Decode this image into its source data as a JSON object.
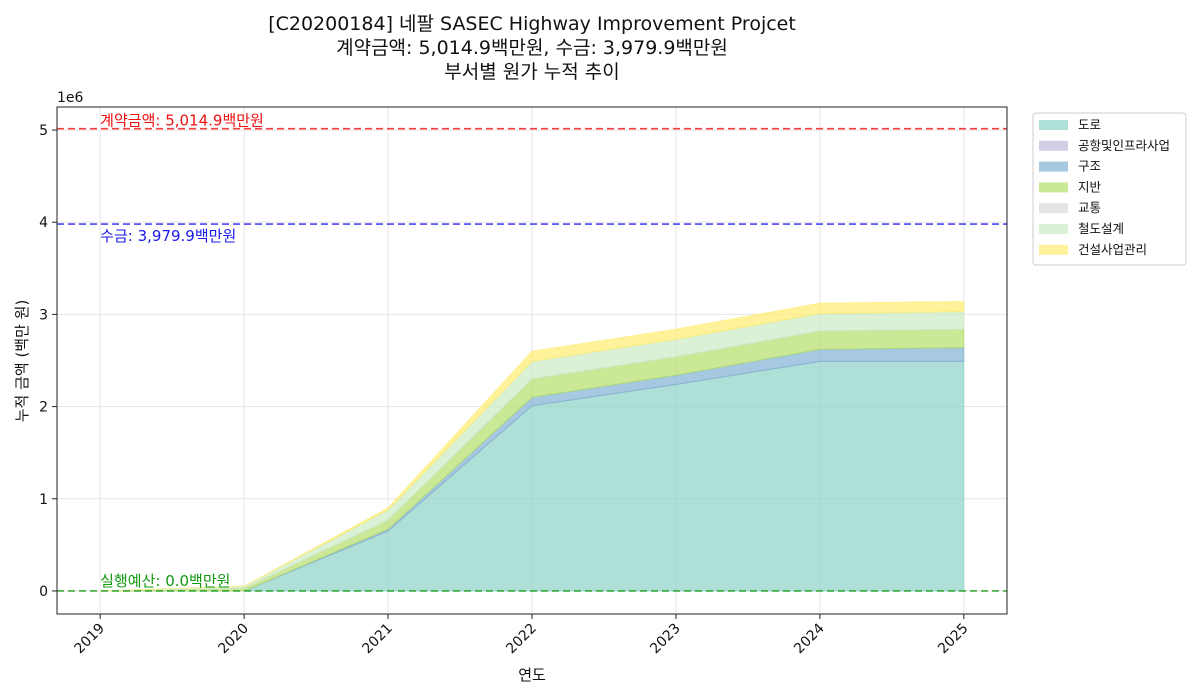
{
  "chart_data": {
    "type": "area",
    "stacked": true,
    "title_lines": [
      "[C20200184] 네팔 SASEC Highway Improvement Projcet",
      "계약금액: 5,014.9백만원, 수금: 3,979.9백만원",
      "부서별 원가 누적 추이"
    ],
    "xlabel": "연도",
    "ylabel": "누적 금액 (백만 원)",
    "y_offset_label": "1e6",
    "x": [
      2019,
      2020,
      2021,
      2022,
      2023,
      2024,
      2025
    ],
    "x_tick_labels": [
      "2019",
      "2020",
      "2021",
      "2022",
      "2023",
      "2024",
      "2025"
    ],
    "ylim": [
      -250000,
      5250000
    ],
    "y_ticks": [
      0,
      1000000,
      2000000,
      3000000,
      4000000,
      5000000
    ],
    "y_tick_labels": [
      "0",
      "1",
      "2",
      "3",
      "4",
      "5"
    ],
    "grid": true,
    "legend_position": "outside-right-top",
    "series": [
      {
        "name": "도로",
        "color": "#8dd3c7",
        "values": [
          0,
          0,
          650000,
          2010000,
          2240000,
          2490000,
          2490000
        ]
      },
      {
        "name": "공항및인프라사업",
        "color": "#bebada",
        "values": [
          0,
          0,
          0,
          0,
          0,
          0,
          0
        ]
      },
      {
        "name": "구조",
        "color": "#80b1d3",
        "values": [
          0,
          0,
          20000,
          90000,
          100000,
          130000,
          150000
        ]
      },
      {
        "name": "지반",
        "color": "#b3de69",
        "values": [
          0,
          30000,
          100000,
          200000,
          200000,
          200000,
          200000
        ]
      },
      {
        "name": "교통",
        "color": "#d9d9d9",
        "values": [
          0,
          0,
          0,
          0,
          0,
          0,
          0
        ]
      },
      {
        "name": "철도설계",
        "color": "#ccebc5",
        "values": [
          0,
          20000,
          110000,
          190000,
          190000,
          190000,
          190000
        ]
      },
      {
        "name": "건설사업관리",
        "color": "#ffed6f",
        "values": [
          0,
          0,
          20000,
          110000,
          110000,
          110000,
          110000
        ]
      }
    ],
    "reference_lines": [
      {
        "label": "계약금액: 5,014.9백만원",
        "value": 5014900,
        "color": "#ee1111"
      },
      {
        "label": "수금: 3,979.9백만원",
        "value": 3979900,
        "color": "#1a1aee"
      },
      {
        "label": "실행예산: 0.0백만원",
        "value": 0,
        "color": "#119911"
      }
    ]
  }
}
